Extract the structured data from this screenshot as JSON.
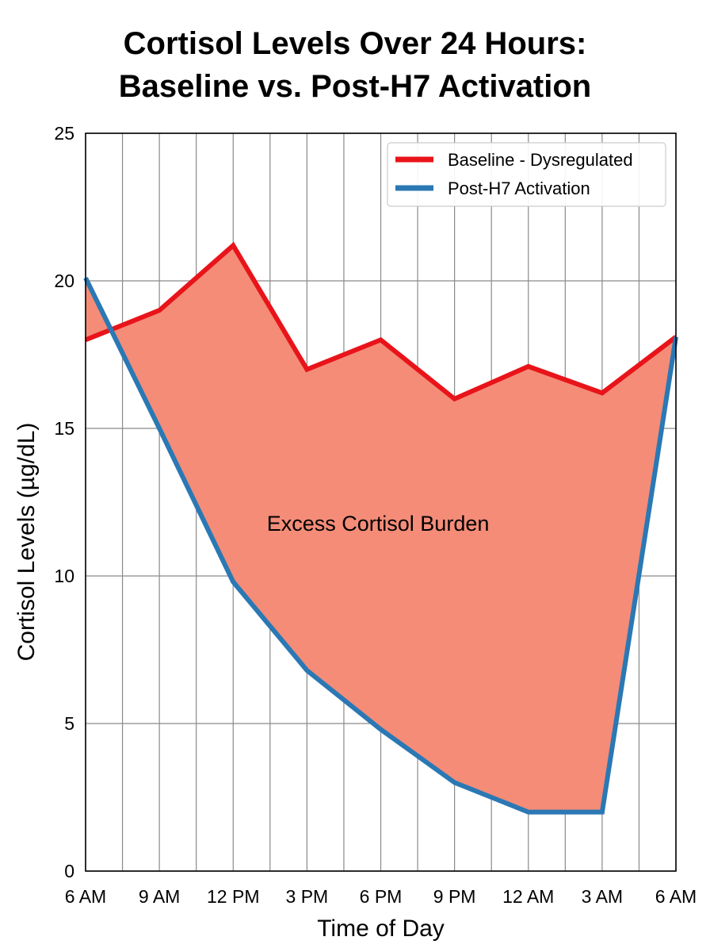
{
  "chart_data": {
    "type": "area",
    "title_lines": [
      "Cortisol Levels Over 24 Hours:",
      "Baseline vs. Post-H7 Activation"
    ],
    "xlabel": "Time of Day",
    "ylabel": "Cortisol Levels (µg/dL)",
    "categories": [
      "6 AM",
      "9 AM",
      "12 PM",
      "3 PM",
      "6 PM",
      "9 PM",
      "12 AM",
      "3 AM",
      "6 AM"
    ],
    "ylim": [
      0,
      25
    ],
    "yticks": [
      0,
      5,
      10,
      15,
      20,
      25
    ],
    "grid": true,
    "legend_position": "top-right",
    "series": [
      {
        "name": "Baseline - Dysregulated",
        "color": "#e8141a",
        "values": [
          18.0,
          19.0,
          21.2,
          17.0,
          18.0,
          16.0,
          17.1,
          16.2,
          18.1
        ]
      },
      {
        "name": "Post-H7 Activation",
        "color": "#2a78b4",
        "values": [
          20.1,
          15.0,
          9.8,
          6.8,
          4.8,
          3.0,
          2.0,
          2.0,
          18.1
        ]
      }
    ],
    "fill_color": "#f48c78",
    "annotation": {
      "text": "Excess Cortisol Burden",
      "x_index": 4.5,
      "y": 11.8
    }
  }
}
